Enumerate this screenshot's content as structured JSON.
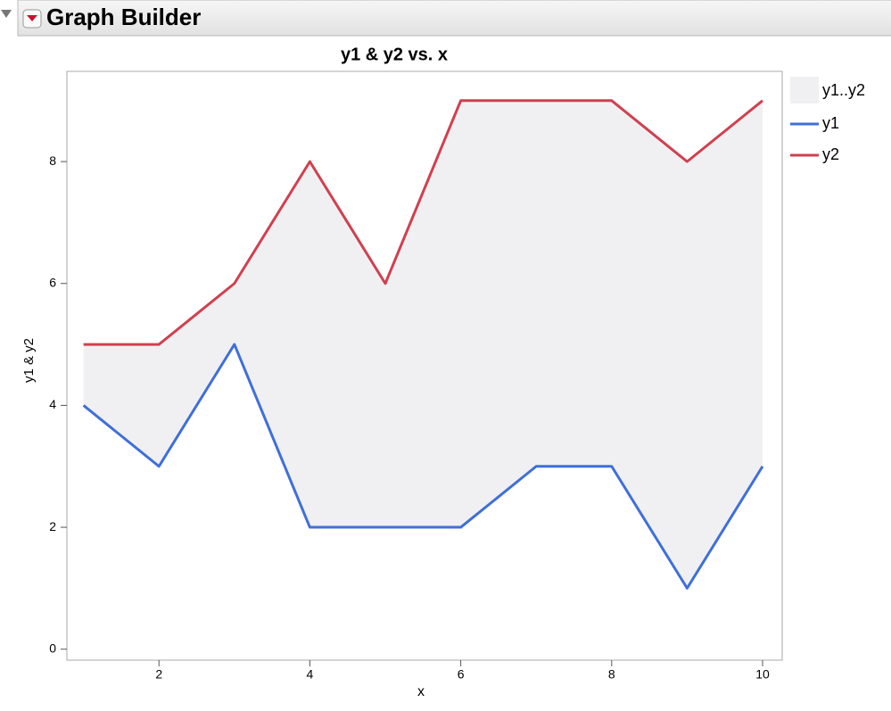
{
  "header": {
    "title": "Graph Builder"
  },
  "chart_data": {
    "type": "line",
    "title": "y1 & y2 vs. x",
    "x_label": "x",
    "y_label": "y1 & y2",
    "x": [
      1,
      2,
      3,
      4,
      5,
      6,
      7,
      8,
      9,
      10
    ],
    "series": [
      {
        "name": "y1",
        "color": "#3f6fd8",
        "values": [
          4,
          3,
          5,
          2,
          2,
          2,
          3,
          3,
          1,
          3
        ]
      },
      {
        "name": "y2",
        "color": "#d0404f",
        "values": [
          5,
          5,
          6,
          8,
          6,
          9,
          9,
          9,
          8,
          9
        ]
      }
    ],
    "band": {
      "name": "y1..y2",
      "color": "#f0f0f2"
    },
    "xlim": [
      0.78,
      10.26
    ],
    "xticks": [
      2,
      4,
      6,
      8,
      10
    ],
    "ylim": [
      -0.18,
      9.48
    ],
    "yticks": [
      0,
      2,
      4,
      6,
      8
    ],
    "legend": "right"
  }
}
